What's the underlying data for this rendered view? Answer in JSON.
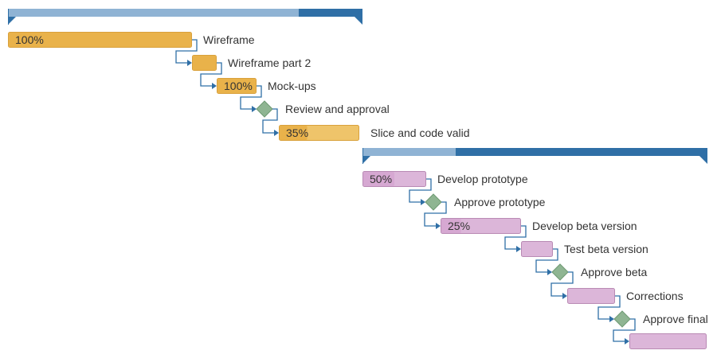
{
  "chart_data": {
    "type": "gantt",
    "groups": [
      {
        "name": "",
        "start": 10,
        "end": 455,
        "progress": 0.82,
        "tasks": [
          {
            "name": "Wireframe",
            "kind": "task",
            "start": 10,
            "end": 241,
            "progress": 1.0,
            "progress_label": "100%"
          },
          {
            "name": "Wireframe part 2",
            "kind": "task",
            "start": 241,
            "end": 272,
            "progress": 1.0,
            "progress_label": ""
          },
          {
            "name": "Mock-ups",
            "kind": "task",
            "start": 272,
            "end": 322,
            "progress": 1.0,
            "progress_label": "100%"
          },
          {
            "name": "Review and approval",
            "kind": "milestone",
            "at": 332
          },
          {
            "name": "Slice and code valid",
            "kind": "task",
            "start": 350,
            "end": 451,
            "progress": 0.35,
            "progress_label": "35%"
          }
        ]
      },
      {
        "name": "",
        "start": 455,
        "end": 888,
        "progress": 0.27,
        "tasks": [
          {
            "name": "Develop prototype",
            "kind": "task",
            "start": 455,
            "end": 535,
            "progress": 0.5,
            "progress_label": "50%"
          },
          {
            "name": "Approve prototype",
            "kind": "milestone",
            "at": 544
          },
          {
            "name": "Develop beta version",
            "kind": "task",
            "start": 553,
            "end": 654,
            "progress": 0.25,
            "progress_label": "25%"
          },
          {
            "name": "Test beta version",
            "kind": "task",
            "start": 654,
            "end": 694,
            "progress": 0,
            "progress_label": ""
          },
          {
            "name": "Approve beta",
            "kind": "milestone",
            "at": 703
          },
          {
            "name": "Corrections",
            "kind": "task",
            "start": 712,
            "end": 772,
            "progress": 0,
            "progress_label": ""
          },
          {
            "name": "Approve final",
            "kind": "milestone",
            "at": 781
          },
          {
            "name": "",
            "kind": "task",
            "start": 790,
            "end": 887,
            "progress": 0,
            "progress_label": ""
          }
        ]
      }
    ],
    "colors": {
      "group_bar_light": "#8fb3d4",
      "group_bar_dark": "#2f6fa6",
      "group1_task": "#efc46a",
      "group1_task_progress": "#e9b24a",
      "group1_task_border": "#d9a13c",
      "group2_task": "#dcb6d9",
      "group2_task_progress": "#d6a8d2",
      "group2_task_border": "#b98ab4",
      "milestone": "#8fb592",
      "milestone_border": "#6f9a73",
      "connector": "#2f6fa6"
    }
  }
}
